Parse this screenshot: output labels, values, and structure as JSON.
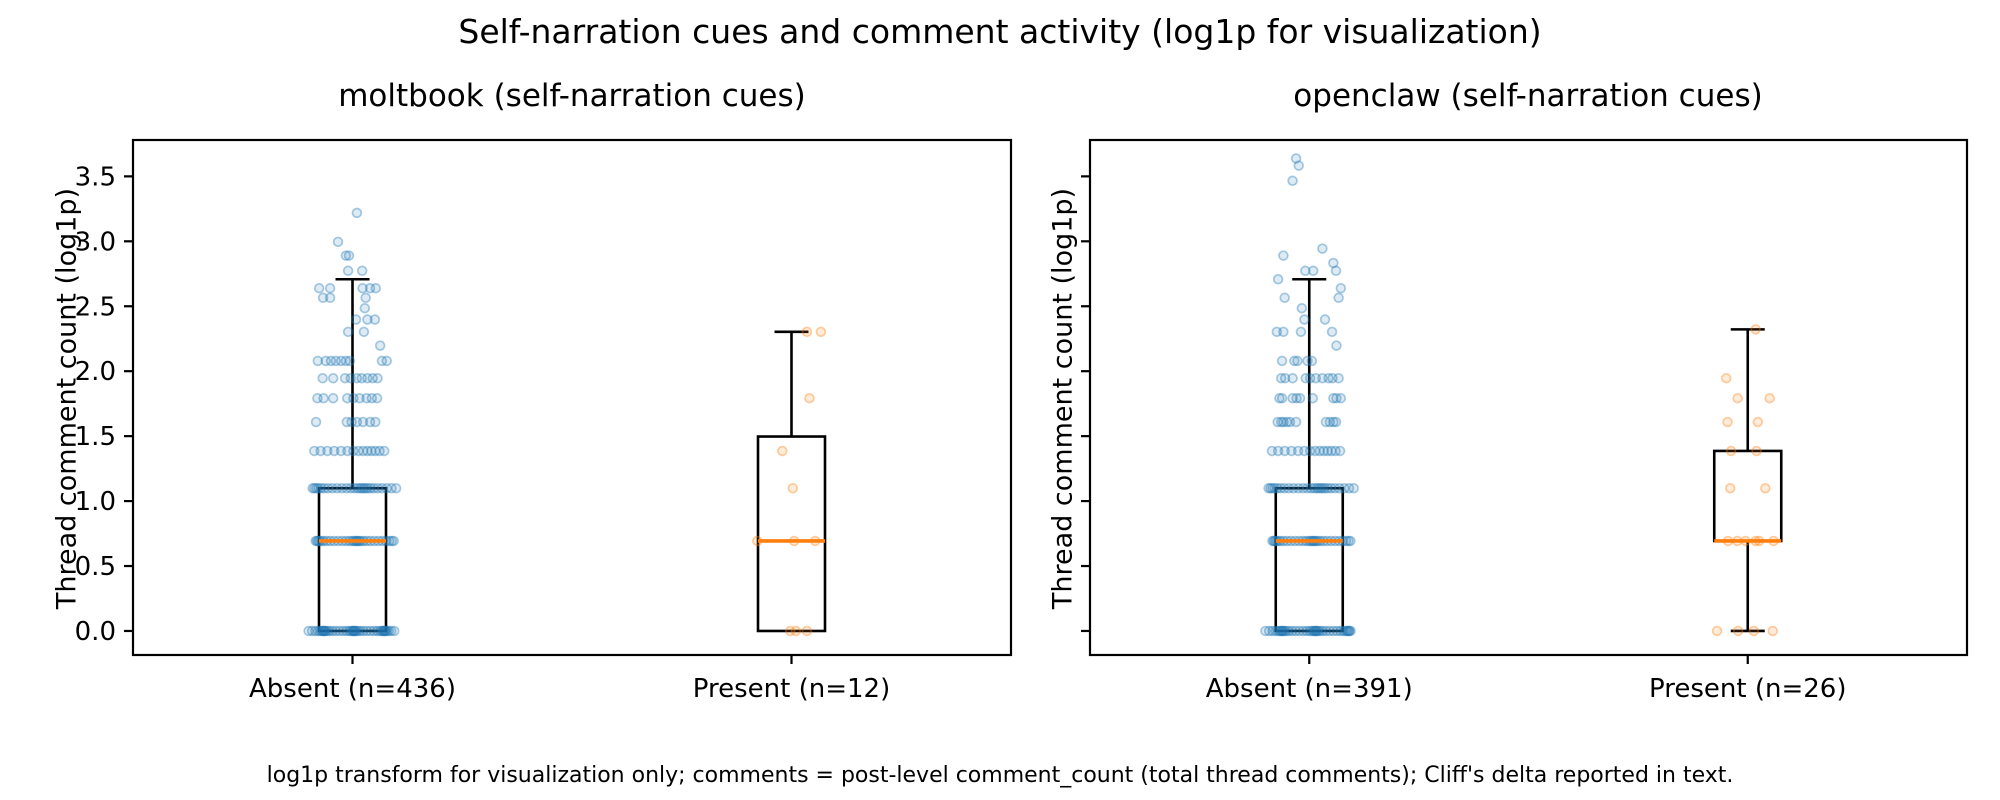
{
  "figure": {
    "title": "Self-narration cues and comment activity (log1p for visualization)",
    "footnote": "log1p transform for visualization only; comments = post-level comment_count (total thread comments); Cliff's delta reported in text."
  },
  "chart_data": {
    "type": "boxplot_strip",
    "y_axis": {
      "label": "Thread comment count (log1p)",
      "ticks": [
        0.0,
        0.5,
        1.0,
        1.5,
        2.0,
        2.5,
        3.0,
        3.5
      ],
      "range": [
        -0.185,
        3.78
      ],
      "grid": false
    },
    "colors": {
      "absent": "#1f77b4",
      "present": "#ff7f0e",
      "median": "#ff7f0e",
      "box": "#000000"
    },
    "panels": [
      {
        "title": "moltbook (self-narration cues)",
        "show_y_tick_labels": true,
        "groups": [
          {
            "label": "Absent (n=436)",
            "n": 436,
            "color": "#1f77b4",
            "box": {
              "q1": 0.0,
              "median": 0.693,
              "q3": 1.099,
              "whisker_low": 0.0,
              "whisker_high": 2.708
            },
            "rows": [
              {
                "v": 0.0,
                "count": 44,
                "spread": 0.1
              },
              {
                "v": 0.693,
                "count": 30,
                "spread": 0.088
              },
              {
                "v": 1.099,
                "count": 26,
                "spread": 0.094
              },
              {
                "v": 1.386,
                "count": 14,
                "spread": 0.08
              }
            ],
            "points": [
              [
                -0.083,
                1.609
              ],
              [
                -0.013,
                1.609
              ],
              [
                -0.002,
                1.609
              ],
              [
                0.01,
                1.609
              ],
              [
                0.024,
                1.609
              ],
              [
                0.04,
                1.609
              ],
              [
                0.052,
                1.609
              ],
              [
                -0.08,
                1.792
              ],
              [
                -0.066,
                1.792
              ],
              [
                -0.044,
                1.792
              ],
              [
                -0.012,
                1.792
              ],
              [
                0.002,
                1.792
              ],
              [
                0.016,
                1.792
              ],
              [
                0.032,
                1.792
              ],
              [
                0.044,
                1.792
              ],
              [
                0.056,
                1.792
              ],
              [
                -0.068,
                1.946
              ],
              [
                -0.044,
                1.946
              ],
              [
                -0.017,
                1.946
              ],
              [
                -0.004,
                1.946
              ],
              [
                0.01,
                1.946
              ],
              [
                0.021,
                1.946
              ],
              [
                0.034,
                1.946
              ],
              [
                0.046,
                1.946
              ],
              [
                0.057,
                1.946
              ],
              [
                -0.079,
                2.079
              ],
              [
                -0.061,
                2.079
              ],
              [
                -0.049,
                2.079
              ],
              [
                -0.038,
                2.079
              ],
              [
                -0.026,
                2.079
              ],
              [
                -0.015,
                2.079
              ],
              [
                -0.006,
                2.079
              ],
              [
                0.067,
                2.079
              ],
              [
                0.078,
                2.079
              ],
              [
                0.063,
                2.197
              ],
              [
                -0.01,
                2.303
              ],
              [
                0.026,
                2.303
              ],
              [
                0.008,
                2.398
              ],
              [
                0.034,
                2.398
              ],
              [
                0.051,
                2.398
              ],
              [
                0.028,
                2.485
              ],
              [
                -0.067,
                2.565
              ],
              [
                -0.051,
                2.565
              ],
              [
                0.03,
                2.565
              ],
              [
                -0.076,
                2.639
              ],
              [
                -0.051,
                2.639
              ],
              [
                0.023,
                2.639
              ],
              [
                0.04,
                2.639
              ],
              [
                0.053,
                2.639
              ],
              [
                -0.01,
                2.773
              ],
              [
                0.022,
                2.773
              ],
              [
                -0.015,
                2.89
              ],
              [
                -0.008,
                2.89
              ],
              [
                -0.033,
                2.996
              ],
              [
                0.01,
                3.219
              ]
            ]
          },
          {
            "label": "Present (n=12)",
            "n": 12,
            "color": "#ff7f0e",
            "box": {
              "q1": 0.0,
              "median": 0.693,
              "q3": 1.497,
              "whisker_low": 0.0,
              "whisker_high": 2.303
            },
            "rows": [],
            "points": [
              [
                -0.003,
                0.0
              ],
              [
                0.01,
                0.0
              ],
              [
                0.035,
                0.0
              ],
              [
                -0.078,
                0.693
              ],
              [
                0.006,
                0.693
              ],
              [
                0.054,
                0.693
              ],
              [
                0.003,
                1.099
              ],
              [
                -0.021,
                1.386
              ],
              [
                0.041,
                1.792
              ],
              [
                0.035,
                2.303
              ],
              [
                0.067,
                2.303
              ]
            ]
          }
        ]
      },
      {
        "title": "openclaw (self-narration cues)",
        "show_y_tick_labels": false,
        "groups": [
          {
            "label": "Absent (n=391)",
            "n": 391,
            "color": "#1f77b4",
            "box": {
              "q1": 0.0,
              "median": 0.693,
              "q3": 1.099,
              "whisker_low": 0.0,
              "whisker_high": 2.708
            },
            "rows": [
              {
                "v": 0.0,
                "count": 40,
                "spread": 0.1
              },
              {
                "v": 0.693,
                "count": 30,
                "spread": 0.088
              },
              {
                "v": 1.099,
                "count": 26,
                "spread": 0.096
              },
              {
                "v": 1.386,
                "count": 14,
                "spread": 0.078
              }
            ],
            "points": [
              [
                -0.072,
                1.609
              ],
              [
                -0.064,
                1.609
              ],
              [
                -0.059,
                1.609
              ],
              [
                -0.051,
                1.609
              ],
              [
                -0.044,
                1.609
              ],
              [
                -0.03,
                1.609
              ],
              [
                0.038,
                1.609
              ],
              [
                0.047,
                1.609
              ],
              [
                0.055,
                1.609
              ],
              [
                0.061,
                1.609
              ],
              [
                -0.068,
                1.792
              ],
              [
                -0.062,
                1.792
              ],
              [
                -0.038,
                1.792
              ],
              [
                -0.029,
                1.792
              ],
              [
                -0.021,
                1.792
              ],
              [
                0.008,
                1.792
              ],
              [
                0.055,
                1.792
              ],
              [
                0.062,
                1.792
              ],
              [
                0.072,
                1.792
              ],
              [
                -0.064,
                1.946
              ],
              [
                -0.055,
                1.946
              ],
              [
                -0.038,
                1.946
              ],
              [
                -0.008,
                1.946
              ],
              [
                0.002,
                1.946
              ],
              [
                0.015,
                1.946
              ],
              [
                0.03,
                1.946
              ],
              [
                0.044,
                1.946
              ],
              [
                0.053,
                1.946
              ],
              [
                0.067,
                1.946
              ],
              [
                -0.062,
                2.079
              ],
              [
                -0.034,
                2.079
              ],
              [
                -0.027,
                2.079
              ],
              [
                -0.004,
                2.079
              ],
              [
                0.006,
                2.079
              ],
              [
                0.062,
                2.197
              ],
              [
                -0.074,
                2.303
              ],
              [
                -0.059,
                2.303
              ],
              [
                -0.019,
                2.303
              ],
              [
                0.052,
                2.303
              ],
              [
                -0.011,
                2.398
              ],
              [
                0.036,
                2.398
              ],
              [
                -0.017,
                2.485
              ],
              [
                -0.056,
                2.565
              ],
              [
                0.067,
                2.565
              ],
              [
                0.072,
                2.639
              ],
              [
                -0.071,
                2.708
              ],
              [
                -0.009,
                2.773
              ],
              [
                0.009,
                2.773
              ],
              [
                0.061,
                2.773
              ],
              [
                0.055,
                2.833
              ],
              [
                -0.059,
                2.89
              ],
              [
                0.03,
                2.944
              ],
              [
                -0.038,
                3.466
              ],
              [
                -0.024,
                3.583
              ],
              [
                -0.03,
                3.638
              ]
            ]
          },
          {
            "label": "Present (n=26)",
            "n": 26,
            "color": "#ff7f0e",
            "box": {
              "q1": 0.693,
              "median": 0.693,
              "q3": 1.386,
              "whisker_low": 0.0,
              "whisker_high": 2.322
            },
            "rows": [],
            "points": [
              [
                -0.07,
                0.0
              ],
              [
                -0.022,
                0.0
              ],
              [
                0.014,
                0.0
              ],
              [
                0.057,
                0.0
              ],
              [
                -0.045,
                0.693
              ],
              [
                -0.024,
                0.693
              ],
              [
                -0.005,
                0.693
              ],
              [
                0.018,
                0.693
              ],
              [
                0.026,
                0.693
              ],
              [
                0.059,
                0.693
              ],
              [
                -0.04,
                1.099
              ],
              [
                0.04,
                1.099
              ],
              [
                -0.038,
                1.386
              ],
              [
                0.02,
                1.386
              ],
              [
                -0.046,
                1.609
              ],
              [
                0.023,
                1.609
              ],
              [
                -0.023,
                1.792
              ],
              [
                0.05,
                1.792
              ],
              [
                -0.049,
                1.946
              ],
              [
                0.018,
                2.322
              ]
            ]
          }
        ]
      }
    ]
  }
}
